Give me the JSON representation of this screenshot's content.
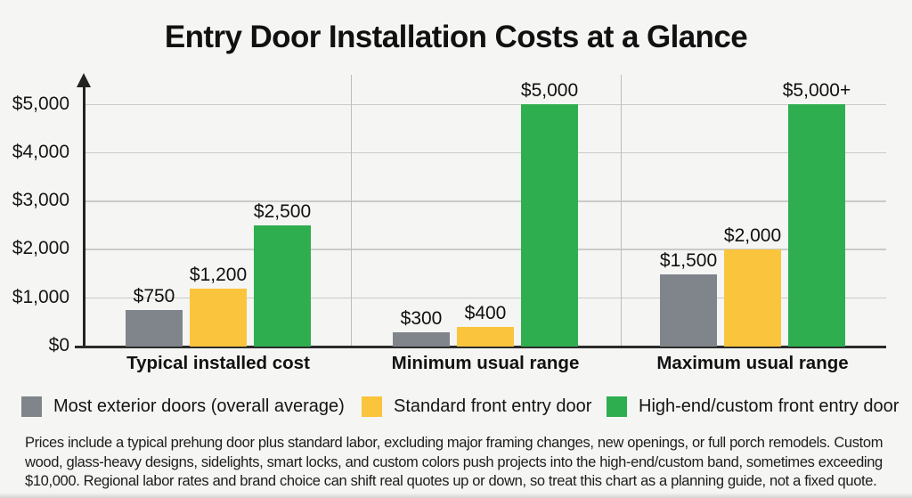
{
  "title": "Entry Door Installation Costs at a Glance",
  "chart_data": {
    "type": "bar",
    "title": "Entry Door Installation Costs at a Glance",
    "categories": [
      "Typical installed cost",
      "Minimum usual range",
      "Maximum usual range"
    ],
    "series": [
      {
        "name": "Most exterior doors (overall average)",
        "color": "#7f858a",
        "values": [
          750,
          300,
          1500
        ],
        "value_labels": [
          "$750",
          "$300",
          "$1,500"
        ]
      },
      {
        "name": "Standard front entry door",
        "color": "#fac53c",
        "values": [
          1200,
          400,
          2000
        ],
        "value_labels": [
          "$1,200",
          "$400",
          "$2,000"
        ]
      },
      {
        "name": "High-end/custom front entry door",
        "color": "#2fae4f",
        "values": [
          2500,
          5000,
          5000
        ],
        "value_labels": [
          "$2,500",
          "$5,000",
          "$5,000+"
        ]
      }
    ],
    "ylim": [
      0,
      5000
    ],
    "yticks": [
      {
        "value": 0,
        "label": "$0"
      },
      {
        "value": 1000,
        "label": "$1,000"
      },
      {
        "value": 2000,
        "label": "$2,000"
      },
      {
        "value": 3000,
        "label": "$3,000"
      },
      {
        "value": 4000,
        "label": "$4,000"
      },
      {
        "value": 5000,
        "label": "$5,000"
      }
    ],
    "grid": "horizontal",
    "legend_position": "bottom"
  },
  "footnote": {
    "lines": [
      "Prices include a typical prehung door plus standard labor, excluding major framing changes, new openings, or full porch remodels. Custom",
      "wood, glass-heavy designs, sidelights, smart locks, and custom colors push projects into the high-end/custom band, sometimes exceeding",
      "$10,000. Regional labor rates and brand choice can shift real quotes up or down, so treat this chart as a planning guide, not a fixed quote."
    ]
  }
}
